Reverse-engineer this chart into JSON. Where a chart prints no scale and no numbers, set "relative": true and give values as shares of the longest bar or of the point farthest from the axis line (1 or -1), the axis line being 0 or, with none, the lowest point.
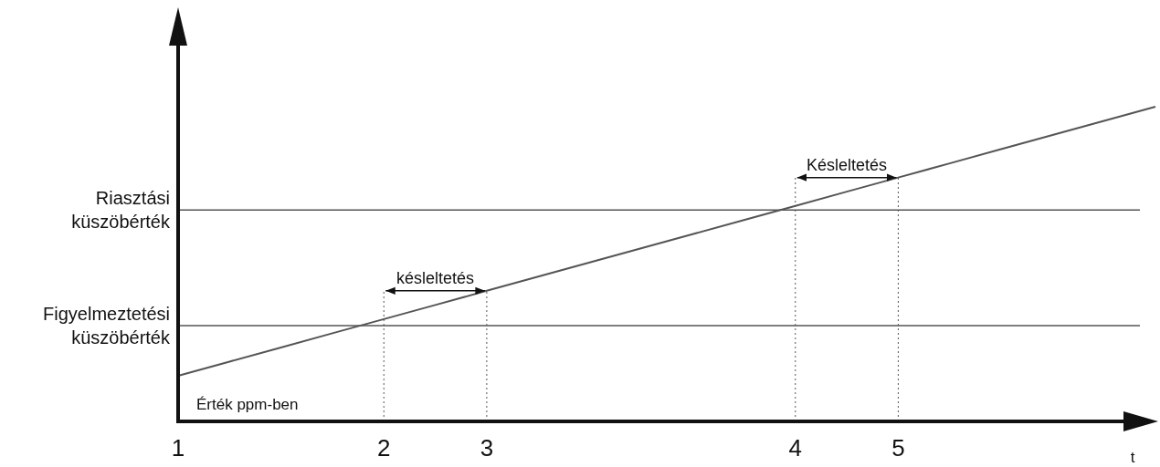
{
  "chart_data": {
    "type": "line",
    "relative": true,
    "xlabel": "t",
    "ylabel": "Érték ppm-ben",
    "categories": [
      "1",
      null,
      null,
      null,
      "2",
      null,
      "3",
      null,
      null,
      null,
      null,
      null,
      "4",
      null,
      "5",
      null,
      null,
      null,
      null,
      null
    ],
    "series": [
      {
        "color": "#555555",
        "values": [
          0.145,
          0.19,
          0.235,
          0.28,
          0.325,
          0.37,
          0.415,
          0.46,
          0.505,
          0.55,
          0.595,
          0.64,
          0.685,
          0.73,
          0.775,
          0.82,
          0.865,
          0.91,
          0.955,
          1
        ]
      }
    ],
    "ref_lines": [
      {
        "axis": "y",
        "value": 0.672,
        "label": "Riasztási küszöbérték",
        "color": "#555555",
        "line_style": "solid"
      },
      {
        "axis": "y",
        "value": 0.304,
        "label": "Figyelmeztetési küszöbérték",
        "color": "#555555",
        "line_style": "solid"
      },
      {
        "axis": "x",
        "value": "2",
        "color": "#555555",
        "line_style": "dotted"
      },
      {
        "axis": "x",
        "value": "3",
        "color": "#555555",
        "line_style": "dotted"
      },
      {
        "axis": "x",
        "value": "4",
        "color": "#555555",
        "line_style": "dotted"
      },
      {
        "axis": "x",
        "value": "5",
        "color": "#555555",
        "line_style": "dotted"
      }
    ],
    "annotations": [
      "késleltetés",
      "Késleltetés"
    ],
    "marker": "none",
    "line_style": "solid"
  }
}
